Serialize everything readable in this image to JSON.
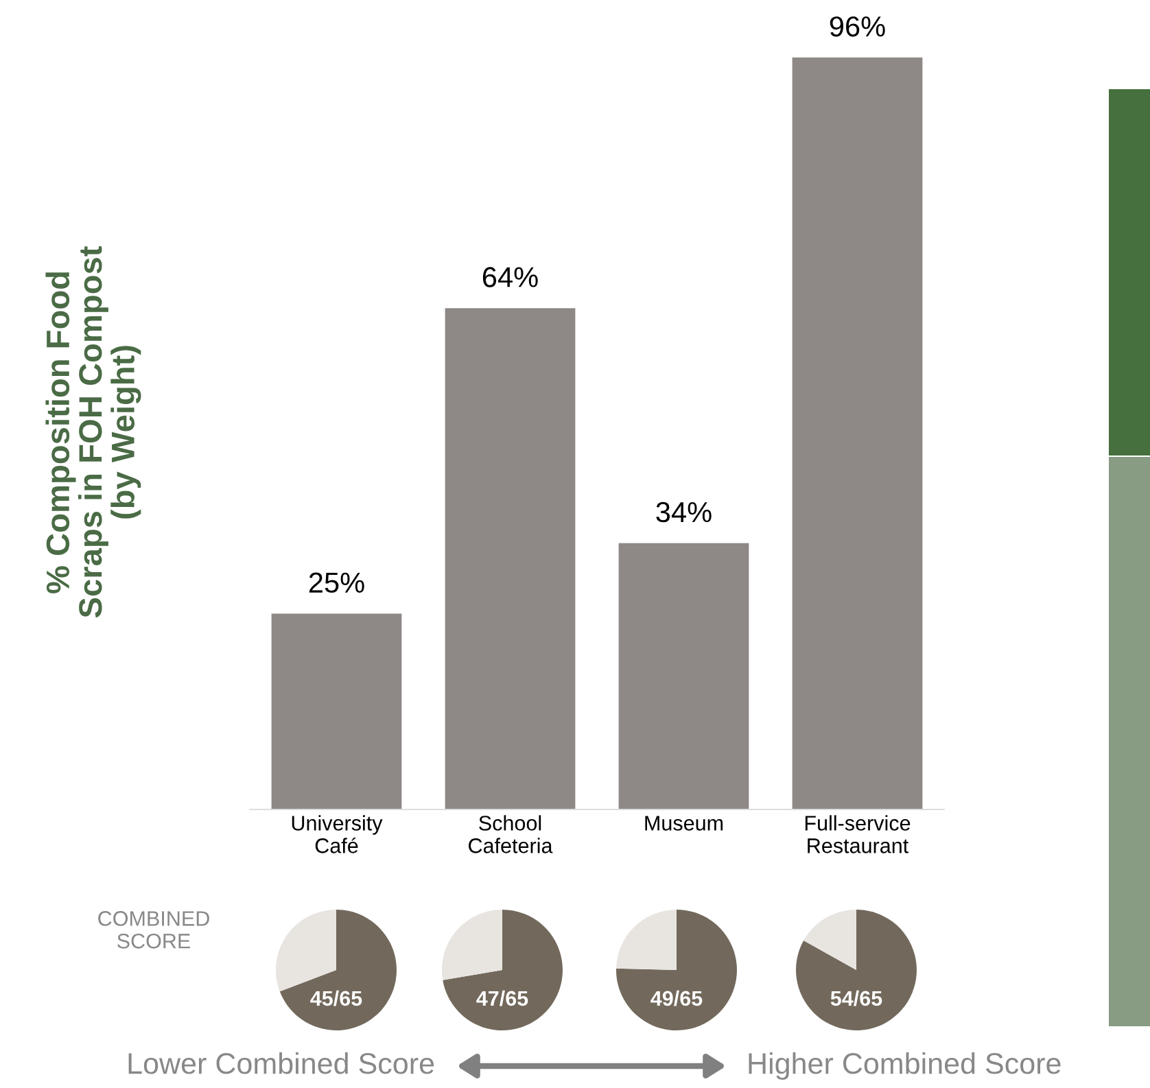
{
  "chart_data": [
    {
      "type": "bar",
      "ylabel": "% Composition Food\nScraps in FOH Compost\n(by Weight)",
      "categories": [
        "University\nCafé",
        "School\nCafeteria",
        "Museum",
        "Full-service\nRestaurant"
      ],
      "values": [
        25,
        64,
        34,
        96
      ],
      "color": "#8e8886",
      "value_labels": [
        "25%",
        "64%",
        "34%",
        "96%"
      ],
      "grid": false,
      "legend": false,
      "annotations": [
        "COMBINED\nSCORE",
        "Lower Combined Score",
        "Higher Combined Score"
      ]
    },
    {
      "type": "pie",
      "categories": [
        null,
        null
      ],
      "values": [
        69.2,
        30.8
      ],
      "colors": [
        "#72695c",
        "#e8e5e1"
      ],
      "annotations": [
        "45/65"
      ]
    },
    {
      "type": "pie",
      "categories": [
        null,
        null
      ],
      "values": [
        72.3,
        27.7
      ],
      "colors": [
        "#72695c",
        "#e8e5e1"
      ],
      "annotations": [
        "47/65"
      ]
    },
    {
      "type": "pie",
      "categories": [
        null,
        null
      ],
      "values": [
        75.4,
        24.6
      ],
      "colors": [
        "#72695c",
        "#e8e5e1"
      ],
      "annotations": [
        "49/65"
      ]
    },
    {
      "type": "pie",
      "categories": [
        null,
        null
      ],
      "values": [
        83.1,
        16.9
      ],
      "colors": [
        "#72695c",
        "#e8e5e1"
      ],
      "annotations": [
        "54/65"
      ]
    }
  ]
}
